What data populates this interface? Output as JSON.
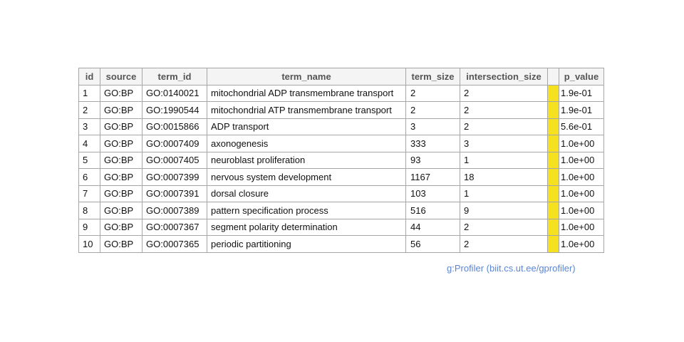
{
  "table": {
    "headers": {
      "id": "id",
      "source": "source",
      "term_id": "term_id",
      "term_name": "term_name",
      "term_size": "term_size",
      "intersection_size": "intersection_size",
      "significance_bar": "",
      "p_value": "p_value"
    },
    "rows": [
      {
        "id": "1",
        "source": "GO:BP",
        "term_id": "GO:0140021",
        "term_name": "mitochondrial ADP transmembrane transport",
        "term_size": "2",
        "intersection_size": "2",
        "p_value": "1.9e-01"
      },
      {
        "id": "2",
        "source": "GO:BP",
        "term_id": "GO:1990544",
        "term_name": "mitochondrial ATP transmembrane transport",
        "term_size": "2",
        "intersection_size": "2",
        "p_value": "1.9e-01"
      },
      {
        "id": "3",
        "source": "GO:BP",
        "term_id": "GO:0015866",
        "term_name": "ADP transport",
        "term_size": "3",
        "intersection_size": "2",
        "p_value": "5.6e-01"
      },
      {
        "id": "4",
        "source": "GO:BP",
        "term_id": "GO:0007409",
        "term_name": "axonogenesis",
        "term_size": "333",
        "intersection_size": "3",
        "p_value": "1.0e+00"
      },
      {
        "id": "5",
        "source": "GO:BP",
        "term_id": "GO:0007405",
        "term_name": "neuroblast proliferation",
        "term_size": "93",
        "intersection_size": "1",
        "p_value": "1.0e+00"
      },
      {
        "id": "6",
        "source": "GO:BP",
        "term_id": "GO:0007399",
        "term_name": "nervous system development",
        "term_size": "1167",
        "intersection_size": "18",
        "p_value": "1.0e+00"
      },
      {
        "id": "7",
        "source": "GO:BP",
        "term_id": "GO:0007391",
        "term_name": "dorsal closure",
        "term_size": "103",
        "intersection_size": "1",
        "p_value": "1.0e+00"
      },
      {
        "id": "8",
        "source": "GO:BP",
        "term_id": "GO:0007389",
        "term_name": "pattern specification process",
        "term_size": "516",
        "intersection_size": "9",
        "p_value": "1.0e+00"
      },
      {
        "id": "9",
        "source": "GO:BP",
        "term_id": "GO:0007367",
        "term_name": "segment polarity determination",
        "term_size": "44",
        "intersection_size": "2",
        "p_value": "1.0e+00"
      },
      {
        "id": "10",
        "source": "GO:BP",
        "term_id": "GO:0007365",
        "term_name": "periodic partitioning",
        "term_size": "56",
        "intersection_size": "2",
        "p_value": "1.0e+00"
      }
    ],
    "bar_color": "#f5e11f"
  },
  "footer": {
    "credit": "g:Profiler (biit.cs.ut.ee/gprofiler)",
    "credit_color": "#5b86d6"
  }
}
